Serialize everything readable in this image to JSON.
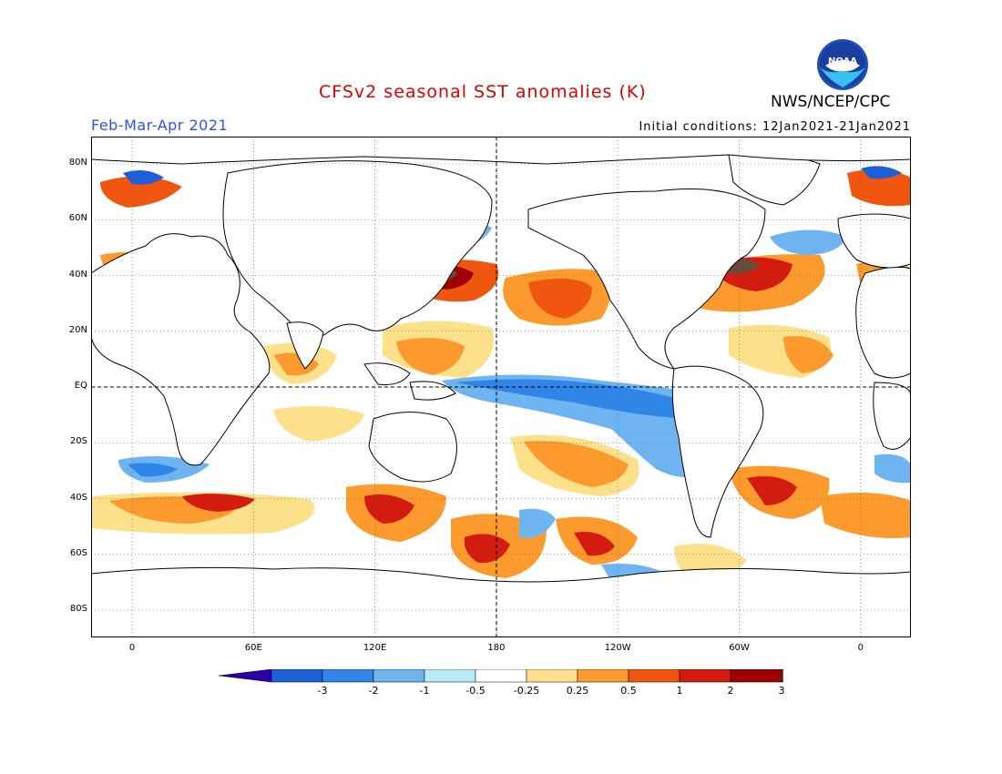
{
  "header": {
    "title": "CFSv2 seasonal SST anomalies (K)",
    "organization": "NWS/NCEP/CPC",
    "logo_text": "NOAA",
    "period": "Feb-Mar-Apr 2021",
    "initial_conditions": "Initial conditions: 12Jan2021-21Jan2021"
  },
  "map": {
    "lat_ticks": [
      "80N",
      "60N",
      "40N",
      "20N",
      "EQ",
      "20S",
      "40S",
      "60S",
      "80S"
    ],
    "lon_ticks": [
      "0",
      "60E",
      "120E",
      "180",
      "120W",
      "60W",
      "0"
    ],
    "projection": "equirectangular, 20W-380E (wrapped), 90S-90N",
    "dateline_marker": "dashed vertical at 180",
    "equator_marker": "dashed horizontal at EQ"
  },
  "colorbar": {
    "labels": [
      "-3",
      "-2",
      "-1",
      "-0.5",
      "-0.25",
      "0.25",
      "0.5",
      "1",
      "2",
      "3"
    ],
    "colors": [
      "#2a00a8",
      "#1c5fd6",
      "#2f86e8",
      "#6eb4f0",
      "#b6ecf6",
      "#ffffff",
      "#fde08a",
      "#fc9a2e",
      "#f0560f",
      "#d41b10",
      "#a00000",
      "#6b4a3c"
    ]
  },
  "anomaly_regions": [
    {
      "name": "central-east-equatorial-pacific-cool",
      "value": "-0.5 to -1"
    },
    {
      "name": "north-pacific-warm",
      "value": "0.5 to 2"
    },
    {
      "name": "kuroshio-extension-warm",
      "value": "1 to 3"
    },
    {
      "name": "northwest-atlantic-warm",
      "value": "1 to 3"
    },
    {
      "name": "south-pacific-warm",
      "value": "0.5 to 1"
    },
    {
      "name": "southern-ocean-mixed",
      "value": "-1 to 2"
    }
  ]
}
